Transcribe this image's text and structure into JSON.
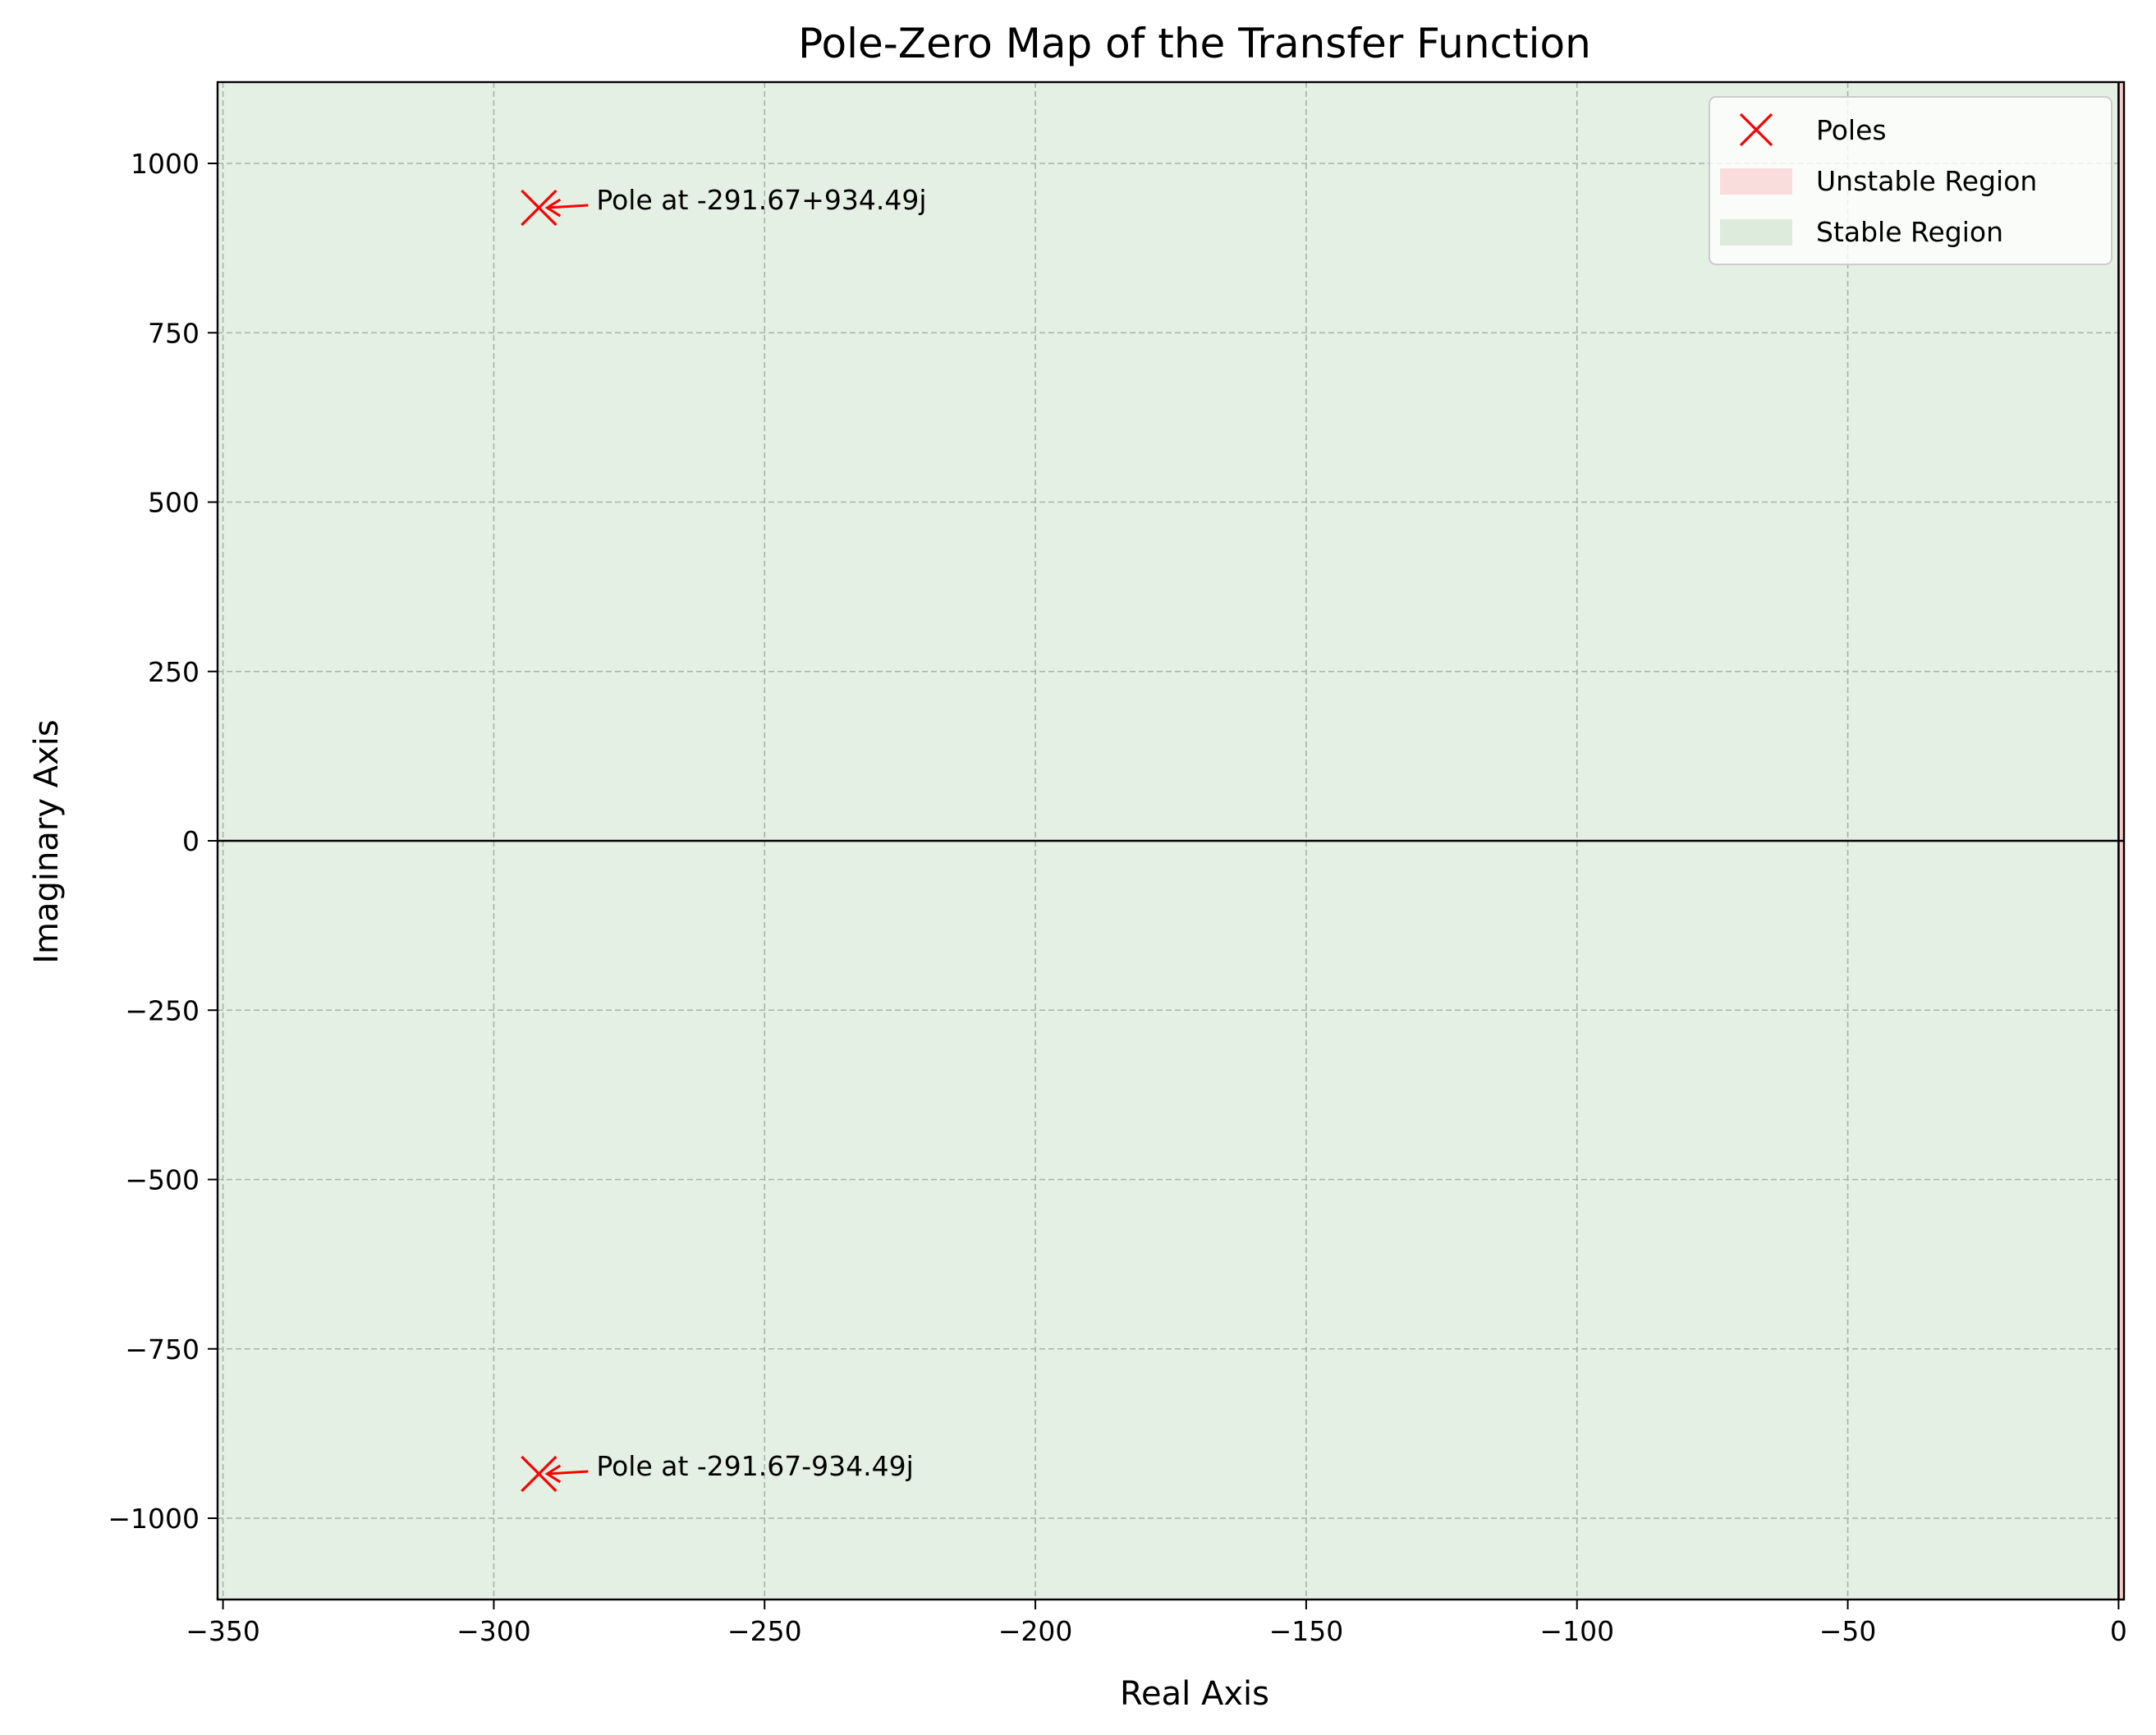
{
  "chart_data": {
    "type": "scatter",
    "title": "Pole-Zero Map of the Transfer Function",
    "xlabel": "Real Axis",
    "ylabel": "Imaginary Axis",
    "xlim": [
      -351,
      1
    ],
    "ylim": [
      -1120,
      1120
    ],
    "xticks": [
      -350,
      -300,
      -250,
      -200,
      -150,
      -100,
      -50,
      0
    ],
    "xtick_labels": [
      "−350",
      "−300",
      "−250",
      "−200",
      "−150",
      "−100",
      "−50",
      "0"
    ],
    "yticks": [
      -1000,
      -750,
      -500,
      -250,
      0,
      250,
      500,
      750,
      1000
    ],
    "ytick_labels": [
      "−1000",
      "−750",
      "−500",
      "−250",
      "0",
      "250",
      "500",
      "750",
      "1000"
    ],
    "grid": true,
    "legend_position": "top-right",
    "series": [
      {
        "name": "Poles",
        "marker": "x",
        "color": "#ff0000",
        "points": [
          {
            "x": -291.67,
            "y": 934.49
          },
          {
            "x": -291.67,
            "y": -934.49
          }
        ]
      }
    ],
    "annotations": [
      {
        "text": "Pole at -291.67+934.49j",
        "x": -291.67,
        "y": 934.49
      },
      {
        "text": "Pole at -291.67-934.49j",
        "x": -291.67,
        "y": -934.49
      }
    ],
    "regions": [
      {
        "name": "Unstable Region",
        "color": "#f4cccc",
        "x_from": 0,
        "x_to": 1
      },
      {
        "name": "Stable Region",
        "color": "#e5f0e5",
        "x_from": -351,
        "x_to": 0
      }
    ],
    "legend": [
      {
        "label": "Poles",
        "kind": "marker",
        "color": "#ff0000"
      },
      {
        "label": "Unstable Region",
        "kind": "patch",
        "color": "#f9dcdc"
      },
      {
        "label": "Stable Region",
        "kind": "patch",
        "color": "#dcebdc"
      }
    ]
  }
}
